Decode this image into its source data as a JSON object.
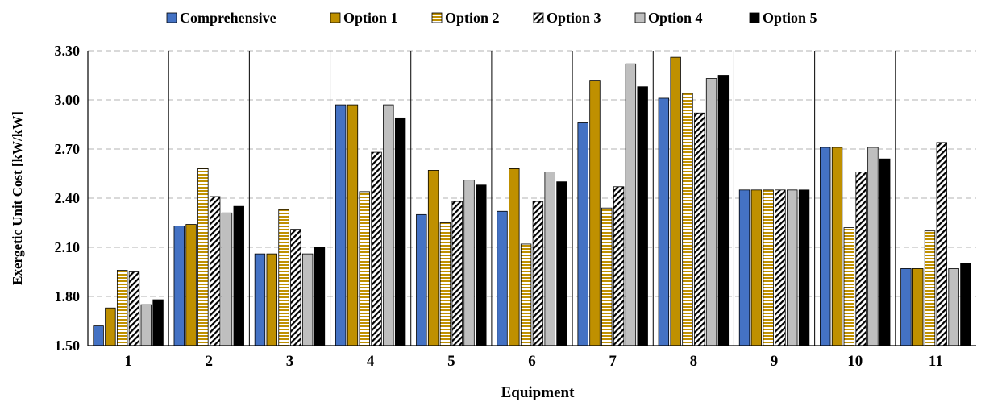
{
  "chart_data": {
    "type": "bar",
    "xlabel": "Equipment",
    "ylabel": "Exergetic Unit Cost [kW/kW]",
    "ylim": [
      1.5,
      3.3
    ],
    "yticks": [
      "1.50",
      "1.80",
      "2.10",
      "2.40",
      "2.70",
      "3.00",
      "3.30"
    ],
    "grid": true,
    "legend_position": "top",
    "categories": [
      "1",
      "2",
      "3",
      "4",
      "5",
      "6",
      "7",
      "8",
      "9",
      "10",
      "11"
    ],
    "series": [
      {
        "name": "Comprehensive",
        "color": "#4472C4",
        "pattern": "solid",
        "values": [
          1.62,
          2.23,
          2.06,
          2.97,
          2.3,
          2.32,
          2.86,
          3.01,
          2.45,
          2.71,
          1.97
        ]
      },
      {
        "name": "Option 1",
        "color": "#BF9000",
        "pattern": "solid",
        "values": [
          1.73,
          2.24,
          2.06,
          2.97,
          2.57,
          2.58,
          3.12,
          3.26,
          2.45,
          2.71,
          1.97
        ]
      },
      {
        "name": "Option 2",
        "color": "#BF9000",
        "pattern": "horizontal-stripes",
        "values": [
          1.96,
          2.58,
          2.33,
          2.44,
          2.25,
          2.12,
          2.34,
          3.04,
          2.45,
          2.22,
          2.2
        ]
      },
      {
        "name": "Option 3",
        "color": "#000000",
        "pattern": "diagonal-stripes",
        "values": [
          1.95,
          2.41,
          2.21,
          2.68,
          2.38,
          2.38,
          2.47,
          2.92,
          2.45,
          2.56,
          2.74
        ]
      },
      {
        "name": "Option 4",
        "color": "#BFBFBF",
        "pattern": "solid",
        "values": [
          1.75,
          2.31,
          2.06,
          2.97,
          2.51,
          2.56,
          3.22,
          3.13,
          2.45,
          2.71,
          1.97
        ]
      },
      {
        "name": "Option 5",
        "color": "#000000",
        "pattern": "solid",
        "values": [
          1.78,
          2.35,
          2.1,
          2.89,
          2.48,
          2.5,
          3.08,
          3.15,
          2.45,
          2.64,
          2.0
        ]
      }
    ]
  }
}
